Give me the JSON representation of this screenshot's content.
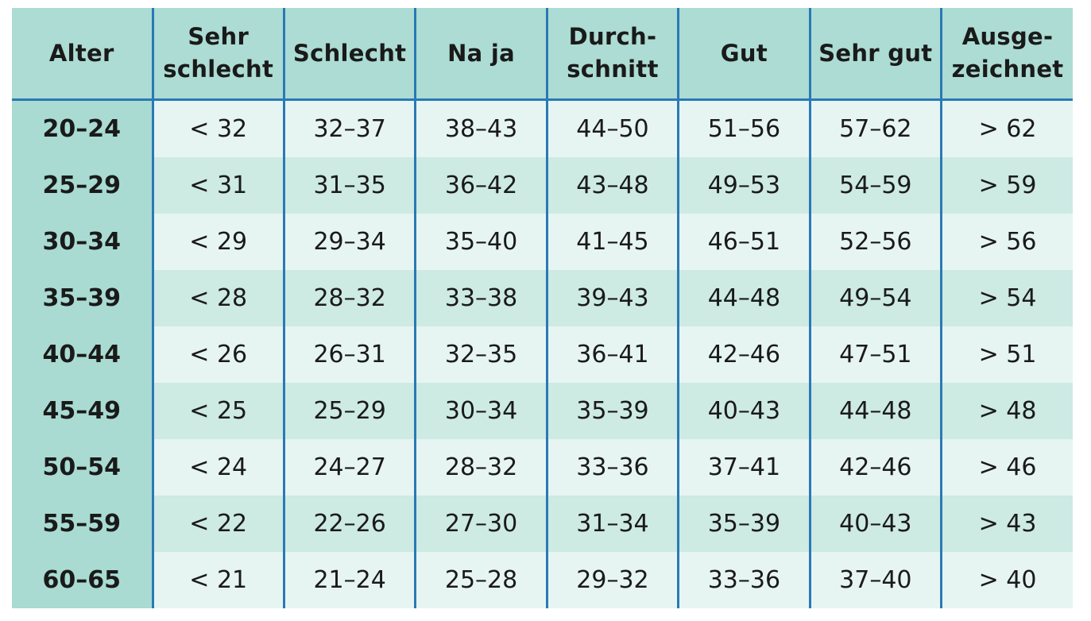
{
  "table": {
    "header": [
      "Alter",
      "Sehr\nschlecht",
      "Schlecht",
      "Na ja",
      "Durch-\nschnitt",
      "Gut",
      "Sehr gut",
      "Ausge-\nzeichnet"
    ],
    "rows": [
      [
        "20–24",
        "< 32",
        "32–37",
        "38–43",
        "44–50",
        "51–56",
        "57–62",
        "> 62"
      ],
      [
        "25–29",
        "< 31",
        "31–35",
        "36–42",
        "43–48",
        "49–53",
        "54–59",
        "> 59"
      ],
      [
        "30–34",
        "< 29",
        "29–34",
        "35–40",
        "41–45",
        "46–51",
        "52–56",
        "> 56"
      ],
      [
        "35–39",
        "< 28",
        "28–32",
        "33–38",
        "39–43",
        "44–48",
        "49–54",
        "> 54"
      ],
      [
        "40–44",
        "< 26",
        "26–31",
        "32–35",
        "36–41",
        "42–46",
        "47–51",
        "> 51"
      ],
      [
        "45–49",
        "< 25",
        "25–29",
        "30–34",
        "35–39",
        "40–43",
        "44–48",
        "> 48"
      ],
      [
        "50–54",
        "< 24",
        "24–27",
        "28–32",
        "33–36",
        "37–41",
        "42–46",
        "> 46"
      ],
      [
        "55–59",
        "< 22",
        "22–26",
        "27–30",
        "31–34",
        "35–39",
        "40–43",
        "> 43"
      ],
      [
        "60–65",
        "< 21",
        "21–24",
        "25–28",
        "29–32",
        "33–36",
        "37–40",
        "> 40"
      ]
    ]
  }
}
